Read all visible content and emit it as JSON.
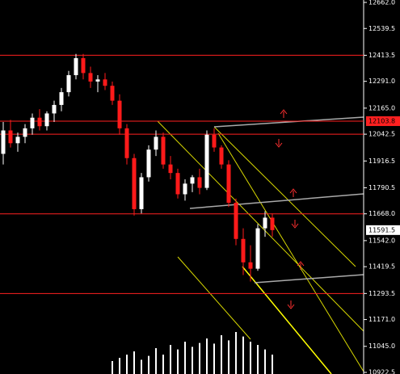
{
  "chart_data": {
    "type": "candlestick",
    "up_color": "#ffffff",
    "down_color": "#ff1a1a",
    "background": "#000000",
    "candles": [
      {
        "o": 11950,
        "h": 12100,
        "l": 11900,
        "c": 12060
      },
      {
        "o": 12060,
        "h": 12110,
        "l": 11980,
        "c": 12000
      },
      {
        "o": 12000,
        "h": 12050,
        "l": 11960,
        "c": 12030
      },
      {
        "o": 12030,
        "h": 12090,
        "l": 12000,
        "c": 12070
      },
      {
        "o": 12070,
        "h": 12140,
        "l": 12040,
        "c": 12120
      },
      {
        "o": 12120,
        "h": 12160,
        "l": 12060,
        "c": 12080
      },
      {
        "o": 12080,
        "h": 12150,
        "l": 12060,
        "c": 12140
      },
      {
        "o": 12140,
        "h": 12200,
        "l": 12100,
        "c": 12180
      },
      {
        "o": 12180,
        "h": 12260,
        "l": 12150,
        "c": 12240
      },
      {
        "o": 12240,
        "h": 12340,
        "l": 12220,
        "c": 12320
      },
      {
        "o": 12320,
        "h": 12420,
        "l": 12300,
        "c": 12400
      },
      {
        "o": 12400,
        "h": 12420,
        "l": 12300,
        "c": 12330
      },
      {
        "o": 12330,
        "h": 12360,
        "l": 12260,
        "c": 12290
      },
      {
        "o": 12290,
        "h": 12320,
        "l": 12240,
        "c": 12300
      },
      {
        "o": 12300,
        "h": 12330,
        "l": 12250,
        "c": 12270
      },
      {
        "o": 12270,
        "h": 12290,
        "l": 12180,
        "c": 12200
      },
      {
        "o": 12200,
        "h": 12230,
        "l": 12040,
        "c": 12070
      },
      {
        "o": 12070,
        "h": 12090,
        "l": 11900,
        "c": 11930
      },
      {
        "o": 11930,
        "h": 11950,
        "l": 11660,
        "c": 11690
      },
      {
        "o": 11690,
        "h": 11860,
        "l": 11670,
        "c": 11840
      },
      {
        "o": 11840,
        "h": 11990,
        "l": 11820,
        "c": 11970
      },
      {
        "o": 11970,
        "h": 12060,
        "l": 11940,
        "c": 12030
      },
      {
        "o": 12030,
        "h": 12050,
        "l": 11880,
        "c": 11900
      },
      {
        "o": 11900,
        "h": 11940,
        "l": 11830,
        "c": 11860
      },
      {
        "o": 11860,
        "h": 11880,
        "l": 11740,
        "c": 11760
      },
      {
        "o": 11760,
        "h": 11830,
        "l": 11730,
        "c": 11810
      },
      {
        "o": 11810,
        "h": 11850,
        "l": 11770,
        "c": 11840
      },
      {
        "o": 11840,
        "h": 11880,
        "l": 11760,
        "c": 11790
      },
      {
        "o": 11790,
        "h": 12060,
        "l": 11780,
        "c": 12040
      },
      {
        "o": 12040,
        "h": 12070,
        "l": 11960,
        "c": 11980
      },
      {
        "o": 11980,
        "h": 11990,
        "l": 11880,
        "c": 11900
      },
      {
        "o": 11900,
        "h": 11920,
        "l": 11700,
        "c": 11720
      },
      {
        "o": 11720,
        "h": 11740,
        "l": 11520,
        "c": 11550
      },
      {
        "o": 11550,
        "h": 11600,
        "l": 11380,
        "c": 11440
      },
      {
        "o": 11440,
        "h": 11520,
        "l": 11350,
        "c": 11410
      },
      {
        "o": 11410,
        "h": 11620,
        "l": 11400,
        "c": 11600
      },
      {
        "o": 11600,
        "h": 11680,
        "l": 11560,
        "c": 11650
      },
      {
        "o": 11650,
        "h": 11670,
        "l": 11560,
        "c": 11591.5
      }
    ],
    "volume": [
      null,
      null,
      null,
      null,
      null,
      null,
      null,
      null,
      null,
      null,
      null,
      null,
      null,
      null,
      null,
      20,
      25,
      30,
      35,
      22,
      28,
      40,
      30,
      45,
      38,
      50,
      42,
      48,
      55,
      47,
      60,
      52,
      65,
      58,
      50,
      45,
      38,
      30
    ],
    "volume_max": 100,
    "levels": [
      {
        "value": 12413.5,
        "color": "#ff2020"
      },
      {
        "value": 12103.8,
        "color": "#ff2020"
      },
      {
        "value": 12042.5,
        "color": "#ff2020"
      },
      {
        "value": 11668,
        "color": "#ff2020"
      },
      {
        "value": 11293.5,
        "color": "#ff2020"
      }
    ],
    "price_markers": [
      {
        "value": 12103.8,
        "label": "12103.8",
        "color": "#ff2020"
      },
      {
        "value": 11591.5,
        "label": "11591.5",
        "color": "#ffffff"
      }
    ],
    "ylim": [
      10922.5,
      12662
    ],
    "yticks": [
      {
        "value": 12662,
        "label": "12662.0"
      },
      {
        "value": 12539.5,
        "label": "12539.5"
      },
      {
        "value": 12413.5,
        "label": "12413.5"
      },
      {
        "value": 12291,
        "label": "12291.0"
      },
      {
        "value": 12165,
        "label": "12165.0"
      },
      {
        "value": 12042.5,
        "label": "12042.5"
      },
      {
        "value": 11916.5,
        "label": "11916.5"
      },
      {
        "value": 11790.5,
        "label": "11790.5"
      },
      {
        "value": 11668,
        "label": "11668.0"
      },
      {
        "value": 11542,
        "label": "11542.0"
      },
      {
        "value": 11419.5,
        "label": "11419.5"
      },
      {
        "value": 11293.5,
        "label": "11293.5"
      },
      {
        "value": 11171,
        "label": "11171.0"
      },
      {
        "value": 11045,
        "label": "11045.0"
      },
      {
        "value": 10922.5,
        "label": "10922.5"
      }
    ]
  }
}
